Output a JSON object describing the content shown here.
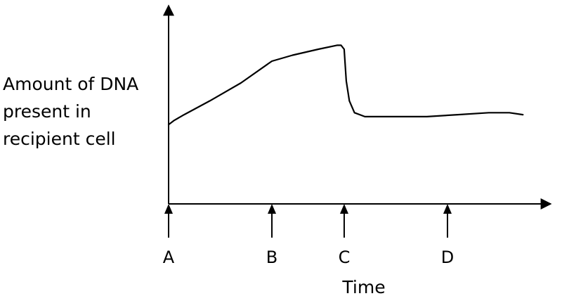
{
  "chart_data": {
    "type": "line",
    "ylabel_lines": [
      "Amount of DNA",
      "present in",
      "recipient cell"
    ],
    "xlabel": "Time",
    "markers": [
      {
        "label": "A",
        "x": 0
      },
      {
        "label": "B",
        "x": 1
      },
      {
        "label": "C",
        "x": 1.7
      },
      {
        "label": "D",
        "x": 2.7
      }
    ],
    "xlim": [
      0,
      3.7
    ],
    "ylim": [
      0,
      1
    ],
    "x_ticks_shown": false,
    "y_ticks_shown": false,
    "grid": false,
    "series": [
      {
        "x": [
          0,
          0.05,
          0.15,
          0.4,
          0.7,
          1.0,
          1.2,
          1.45,
          1.63,
          1.67,
          1.7,
          1.72,
          1.75,
          1.8,
          1.9,
          2.5,
          2.8,
          3.1,
          3.3,
          3.43
        ],
        "y": [
          0.4,
          0.42,
          0.45,
          0.52,
          0.61,
          0.72,
          0.75,
          0.78,
          0.8,
          0.8,
          0.78,
          0.62,
          0.52,
          0.46,
          0.44,
          0.44,
          0.45,
          0.46,
          0.46,
          0.45
        ]
      }
    ]
  }
}
